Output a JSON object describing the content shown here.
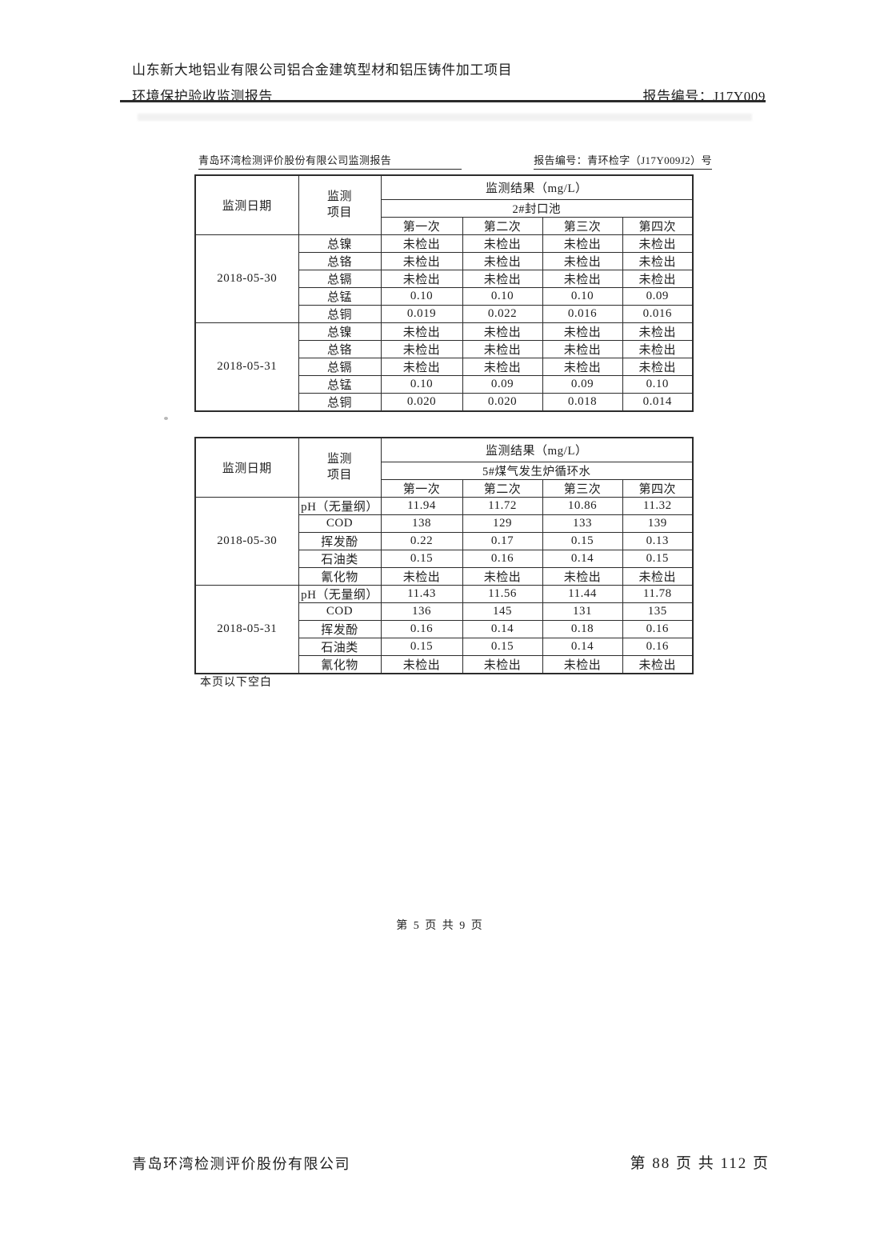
{
  "page": {
    "header_line1": "山东新大地铝业有限公司铝合金建筑型材和铝压铸件加工项目",
    "header_line2": "环境保护验收监测报告",
    "header_report_no": "报告编号：J17Y009",
    "subheader_left": "青岛环湾检测评价股份有限公司监测报告",
    "subheader_right": "报告编号：青环检字（J17Y009J2）号",
    "note_below_blank": "本页以下空白",
    "inner_page_no": "第 5 页 共 9 页",
    "footer_company": "青岛环湾检测评价股份有限公司",
    "footer_page_no": "第 88 页 共 112 页"
  },
  "tables": [
    {
      "labels": {
        "date": "监测日期",
        "item_line1": "监测",
        "item_line2": "项目",
        "result": "监测结果（mg/L）"
      },
      "location": "2#封口池",
      "runs": [
        "第一次",
        "第二次",
        "第三次",
        "第四次"
      ],
      "groups": [
        {
          "date": "2018-05-30",
          "rows": [
            {
              "item": "总镍",
              "values": [
                "未检出",
                "未检出",
                "未检出",
                "未检出"
              ]
            },
            {
              "item": "总铬",
              "values": [
                "未检出",
                "未检出",
                "未检出",
                "未检出"
              ]
            },
            {
              "item": "总镉",
              "values": [
                "未检出",
                "未检出",
                "未检出",
                "未检出"
              ]
            },
            {
              "item": "总锰",
              "values": [
                "0.10",
                "0.10",
                "0.10",
                "0.09"
              ]
            },
            {
              "item": "总铜",
              "values": [
                "0.019",
                "0.022",
                "0.016",
                "0.016"
              ]
            }
          ]
        },
        {
          "date": "2018-05-31",
          "rows": [
            {
              "item": "总镍",
              "values": [
                "未检出",
                "未检出",
                "未检出",
                "未检出"
              ]
            },
            {
              "item": "总铬",
              "values": [
                "未检出",
                "未检出",
                "未检出",
                "未检出"
              ]
            },
            {
              "item": "总镉",
              "values": [
                "未检出",
                "未检出",
                "未检出",
                "未检出"
              ]
            },
            {
              "item": "总锰",
              "values": [
                "0.10",
                "0.09",
                "0.09",
                "0.10"
              ]
            },
            {
              "item": "总铜",
              "values": [
                "0.020",
                "0.020",
                "0.018",
                "0.014"
              ]
            }
          ]
        }
      ]
    },
    {
      "labels": {
        "date": "监测日期",
        "item_line1": "监测",
        "item_line2": "项目",
        "result": "监测结果（mg/L）"
      },
      "location": "5#煤气发生炉循环水",
      "runs": [
        "第一次",
        "第二次",
        "第三次",
        "第四次"
      ],
      "groups": [
        {
          "date": "2018-05-30",
          "rows": [
            {
              "item": "pH（无量纲）",
              "values": [
                "11.94",
                "11.72",
                "10.86",
                "11.32"
              ]
            },
            {
              "item": "COD",
              "values": [
                "138",
                "129",
                "133",
                "139"
              ]
            },
            {
              "item": "挥发酚",
              "values": [
                "0.22",
                "0.17",
                "0.15",
                "0.13"
              ]
            },
            {
              "item": "石油类",
              "values": [
                "0.15",
                "0.16",
                "0.14",
                "0.15"
              ]
            },
            {
              "item": "氰化物",
              "values": [
                "未检出",
                "未检出",
                "未检出",
                "未检出"
              ]
            }
          ]
        },
        {
          "date": "2018-05-31",
          "rows": [
            {
              "item": "pH（无量纲）",
              "values": [
                "11.43",
                "11.56",
                "11.44",
                "11.78"
              ]
            },
            {
              "item": "COD",
              "values": [
                "136",
                "145",
                "131",
                "135"
              ]
            },
            {
              "item": "挥发酚",
              "values": [
                "0.16",
                "0.14",
                "0.18",
                "0.16"
              ]
            },
            {
              "item": "石油类",
              "values": [
                "0.15",
                "0.15",
                "0.14",
                "0.16"
              ]
            },
            {
              "item": "氰化物",
              "values": [
                "未检出",
                "未检出",
                "未检出",
                "未检出"
              ]
            }
          ]
        }
      ]
    }
  ]
}
